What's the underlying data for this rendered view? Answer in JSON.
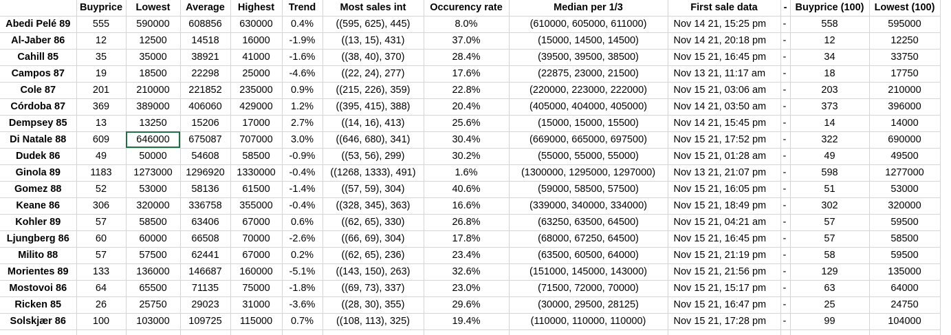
{
  "columns": [
    "",
    "Buyprice",
    "Lowest",
    "Average",
    "Highest",
    "Trend",
    "Most sales int",
    "Occurency rate",
    "Median per 1/3",
    "First sale data",
    "-",
    "Buyprice (100)",
    "Lowest (100)"
  ],
  "rows": [
    {
      "name": "Abedi Pelé 89",
      "buyprice": "555",
      "lowest": "590000",
      "average": "608856",
      "highest": "630000",
      "trend": "0.4%",
      "most_sales": "((595, 625), 445)",
      "occurency": "8.0%",
      "median": "(610000, 605000, 611000)",
      "first_sale": "Nov 14 21, 15:25 pm",
      "dash": "-",
      "buyprice_100": "558",
      "lowest_100": "595000"
    },
    {
      "name": "Al-Jaber 86",
      "buyprice": "12",
      "lowest": "12500",
      "average": "14518",
      "highest": "16000",
      "trend": "-1.9%",
      "most_sales": "((13, 15), 431)",
      "occurency": "37.0%",
      "median": "(15000, 14500, 14500)",
      "first_sale": "Nov 14 21, 20:18 pm",
      "dash": "-",
      "buyprice_100": "12",
      "lowest_100": "12250"
    },
    {
      "name": "Cahill 85",
      "buyprice": "35",
      "lowest": "35000",
      "average": "38921",
      "highest": "41000",
      "trend": "-1.6%",
      "most_sales": "((38, 40), 370)",
      "occurency": "28.4%",
      "median": "(39500, 39500, 38500)",
      "first_sale": "Nov 15 21, 16:45 pm",
      "dash": "-",
      "buyprice_100": "34",
      "lowest_100": "33750"
    },
    {
      "name": "Campos 87",
      "buyprice": "19",
      "lowest": "18500",
      "average": "22298",
      "highest": "25000",
      "trend": "-4.6%",
      "most_sales": "((22, 24), 277)",
      "occurency": "17.6%",
      "median": "(22875, 23000, 21500)",
      "first_sale": "Nov 13 21, 11:17 am",
      "dash": "-",
      "buyprice_100": "18",
      "lowest_100": "17750"
    },
    {
      "name": "Cole 87",
      "buyprice": "201",
      "lowest": "210000",
      "average": "221852",
      "highest": "235000",
      "trend": "0.9%",
      "most_sales": "((215, 226), 359)",
      "occurency": "22.8%",
      "median": "(220000, 223000, 222000)",
      "first_sale": "Nov 15 21, 03:06 am",
      "dash": "-",
      "buyprice_100": "203",
      "lowest_100": "210000"
    },
    {
      "name": "Córdoba 87",
      "buyprice": "369",
      "lowest": "389000",
      "average": "406060",
      "highest": "429000",
      "trend": "1.2%",
      "most_sales": "((395, 415), 388)",
      "occurency": "20.4%",
      "median": "(405000, 404000, 405000)",
      "first_sale": "Nov 14 21, 03:50 am",
      "dash": "-",
      "buyprice_100": "373",
      "lowest_100": "396000"
    },
    {
      "name": "Dempsey 85",
      "buyprice": "13",
      "lowest": "13250",
      "average": "15206",
      "highest": "17000",
      "trend": "2.7%",
      "most_sales": "((14, 16), 413)",
      "occurency": "25.6%",
      "median": "(15000, 15000, 15500)",
      "first_sale": "Nov 14 21, 15:45 pm",
      "dash": "-",
      "buyprice_100": "14",
      "lowest_100": "14000"
    },
    {
      "name": "Di Natale 88",
      "buyprice": "609",
      "lowest": "646000",
      "average": "675087",
      "highest": "707000",
      "trend": "3.0%",
      "most_sales": "((646, 680), 341)",
      "occurency": "30.4%",
      "median": "(669000, 665000, 697500)",
      "first_sale": "Nov 15 21, 17:52 pm",
      "dash": "-",
      "buyprice_100": "322",
      "lowest_100": "690000"
    },
    {
      "name": "Dudek 86",
      "buyprice": "49",
      "lowest": "50000",
      "average": "54608",
      "highest": "58500",
      "trend": "-0.9%",
      "most_sales": "((53, 56), 299)",
      "occurency": "30.2%",
      "median": "(55000, 55000, 55000)",
      "first_sale": "Nov 15 21, 01:28 am",
      "dash": "-",
      "buyprice_100": "49",
      "lowest_100": "49500"
    },
    {
      "name": "Ginola 89",
      "buyprice": "1183",
      "lowest": "1273000",
      "average": "1296920",
      "highest": "1330000",
      "trend": "-0.4%",
      "most_sales": "((1268, 1333), 491)",
      "occurency": "1.6%",
      "median": "(1300000, 1295000, 1297000)",
      "first_sale": "Nov 13 21, 21:07 pm",
      "dash": "-",
      "buyprice_100": "598",
      "lowest_100": "1277000"
    },
    {
      "name": "Gomez 88",
      "buyprice": "52",
      "lowest": "53000",
      "average": "58136",
      "highest": "61500",
      "trend": "-1.4%",
      "most_sales": "((57, 59), 304)",
      "occurency": "40.6%",
      "median": "(59000, 58500, 57500)",
      "first_sale": "Nov 15 21, 16:05 pm",
      "dash": "-",
      "buyprice_100": "51",
      "lowest_100": "53000"
    },
    {
      "name": "Keane 86",
      "buyprice": "306",
      "lowest": "320000",
      "average": "336758",
      "highest": "355000",
      "trend": "-0.4%",
      "most_sales": "((328, 345), 363)",
      "occurency": "16.6%",
      "median": "(339000, 340000, 334000)",
      "first_sale": "Nov 15 21, 18:49 pm",
      "dash": "-",
      "buyprice_100": "302",
      "lowest_100": "320000"
    },
    {
      "name": "Kohler 89",
      "buyprice": "57",
      "lowest": "58500",
      "average": "63406",
      "highest": "67000",
      "trend": "0.6%",
      "most_sales": "((62, 65), 330)",
      "occurency": "26.8%",
      "median": "(63250, 63500, 64500)",
      "first_sale": "Nov 15 21, 04:21 am",
      "dash": "-",
      "buyprice_100": "57",
      "lowest_100": "59500"
    },
    {
      "name": "Ljungberg 86",
      "buyprice": "60",
      "lowest": "60000",
      "average": "66508",
      "highest": "70000",
      "trend": "-2.6%",
      "most_sales": "((66, 69), 304)",
      "occurency": "17.8%",
      "median": "(68000, 67250, 64500)",
      "first_sale": "Nov 15 21, 16:45 pm",
      "dash": "-",
      "buyprice_100": "57",
      "lowest_100": "58500"
    },
    {
      "name": "Milito 88",
      "buyprice": "57",
      "lowest": "57500",
      "average": "62441",
      "highest": "67000",
      "trend": "0.2%",
      "most_sales": "((62, 65), 236)",
      "occurency": "23.4%",
      "median": "(63500, 60500, 64000)",
      "first_sale": "Nov 15 21, 21:19 pm",
      "dash": "-",
      "buyprice_100": "58",
      "lowest_100": "59500"
    },
    {
      "name": "Morientes 89",
      "buyprice": "133",
      "lowest": "136000",
      "average": "146687",
      "highest": "160000",
      "trend": "-5.1%",
      "most_sales": "((143, 150), 263)",
      "occurency": "32.6%",
      "median": "(151000, 145000, 143000)",
      "first_sale": "Nov 15 21, 21:56 pm",
      "dash": "-",
      "buyprice_100": "129",
      "lowest_100": "135000"
    },
    {
      "name": "Mostovoi 86",
      "buyprice": "64",
      "lowest": "65500",
      "average": "71135",
      "highest": "75000",
      "trend": "-1.8%",
      "most_sales": "((69, 73), 337)",
      "occurency": "23.0%",
      "median": "(71500, 72000, 70000)",
      "first_sale": "Nov 15 21, 15:17 pm",
      "dash": "-",
      "buyprice_100": "63",
      "lowest_100": "64000"
    },
    {
      "name": "Ricken 85",
      "buyprice": "26",
      "lowest": "25750",
      "average": "29023",
      "highest": "31000",
      "trend": "-3.6%",
      "most_sales": "((28, 30), 355)",
      "occurency": "29.6%",
      "median": "(30000, 29500, 28125)",
      "first_sale": "Nov 15 21, 16:47 pm",
      "dash": "-",
      "buyprice_100": "25",
      "lowest_100": "24750"
    },
    {
      "name": "Solskjær 86",
      "buyprice": "100",
      "lowest": "103000",
      "average": "109725",
      "highest": "115000",
      "trend": "0.7%",
      "most_sales": "((108, 113), 325)",
      "occurency": "19.4%",
      "median": "(110000, 110000, 110000)",
      "first_sale": "Nov 15 21, 17:28 pm",
      "dash": "-",
      "buyprice_100": "99",
      "lowest_100": "104000"
    }
  ],
  "selected_cell": {
    "row": 7,
    "column": "Lowest"
  },
  "colors": {
    "gridline": "#d4d4d4",
    "selection": "#1e7145"
  }
}
